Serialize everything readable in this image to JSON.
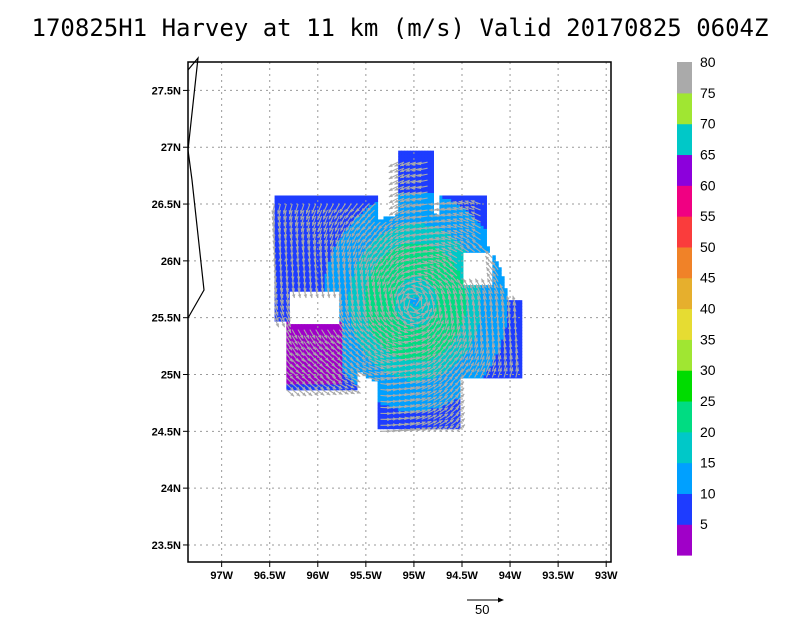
{
  "title": "170825H1 Harvey at 11 km (m/s) Valid 20170825 0604Z",
  "reference_vector_label": "50",
  "chart_data": {
    "type": "heatmap",
    "title": "170825H1 Harvey at 11 km (m/s) Valid 20170825 0604Z",
    "storm": "Harvey",
    "units": "m/s",
    "xlabel": "",
    "ylabel": "",
    "xlim": [
      -97.35,
      -92.95
    ],
    "ylim": [
      23.35,
      27.75
    ],
    "x_ticks": [
      -97,
      -96.5,
      -96,
      -95.5,
      -95,
      -94.5,
      -94,
      -93.5,
      -93
    ],
    "x_tick_labels": [
      "97W",
      "96.5W",
      "96W",
      "95.5W",
      "95W",
      "94.5W",
      "94W",
      "93.5W",
      "93W"
    ],
    "y_ticks": [
      23.5,
      24,
      24.5,
      25,
      25.5,
      26,
      26.5,
      27,
      27.5
    ],
    "y_tick_labels": [
      "23.5N",
      "24N",
      "24.5N",
      "25N",
      "25.5N",
      "26N",
      "26.5N",
      "27N",
      "27.5N"
    ],
    "grid": true,
    "colorbar": {
      "levels": [
        0,
        5,
        10,
        15,
        20,
        25,
        30,
        35,
        40,
        45,
        50,
        55,
        60,
        65,
        70,
        75,
        80,
        85
      ],
      "labels": [
        "5",
        "10",
        "15",
        "20",
        "25",
        "30",
        "35",
        "40",
        "45",
        "50",
        "55",
        "60",
        "65",
        "70",
        "75",
        "80"
      ],
      "colors": [
        "#a000c8",
        "#1e3cff",
        "#00a0ff",
        "#00c8c8",
        "#00dc82",
        "#00dc00",
        "#a0e632",
        "#e6dc32",
        "#e6af2d",
        "#f08228",
        "#fa3c3c",
        "#f00082",
        "#8c00dc",
        "#00c8c8",
        "#a0e632",
        "#aaaaaa"
      ]
    },
    "wind_field": {
      "center": [
        -95.0,
        25.63
      ],
      "wind_min": 14,
      "wind_max": 25,
      "rmw_deg": 0.4,
      "rotation": "counterclockwise"
    },
    "reference_vector": {
      "value": 50,
      "units": "m/s"
    }
  }
}
